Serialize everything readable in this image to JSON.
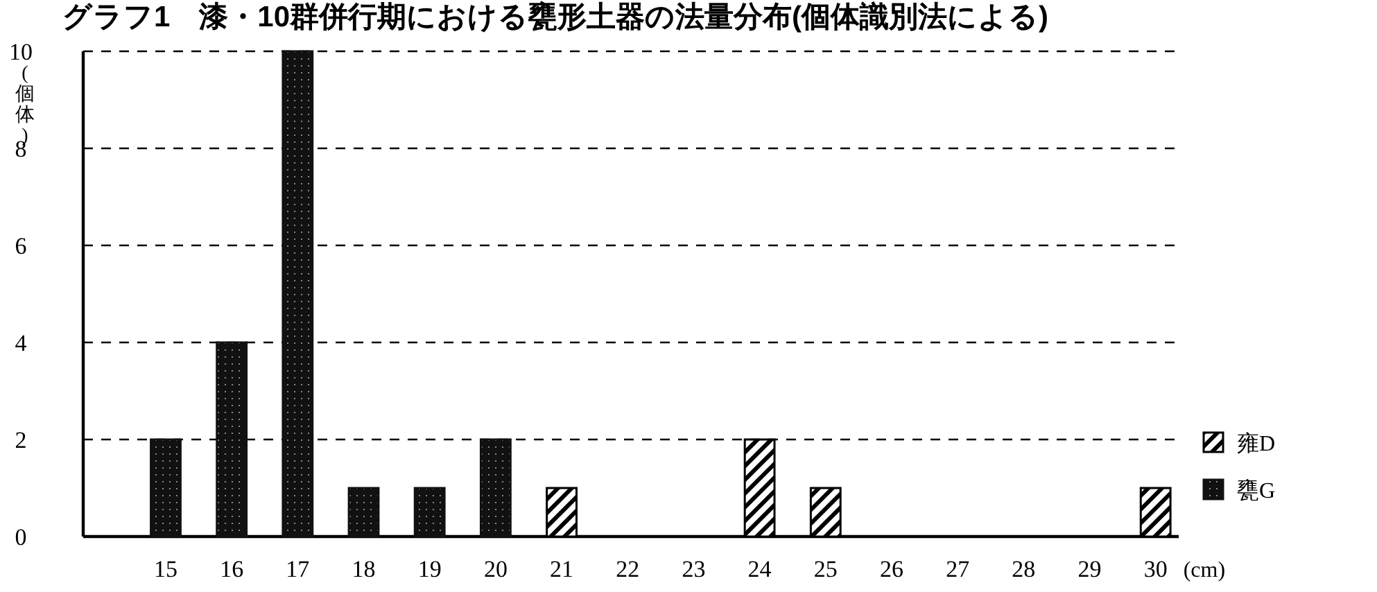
{
  "chart_data": {
    "type": "bar",
    "title": "グラフ1　漆・10群併行期における甕形土器の法量分布(個体識別法による)",
    "ylabel": "(個体)",
    "xlabel": "(cm)",
    "categories": [
      "15",
      "16",
      "17",
      "18",
      "19",
      "20",
      "21",
      "22",
      "23",
      "24",
      "25",
      "26",
      "27",
      "28",
      "29",
      "30"
    ],
    "series": [
      {
        "name": "雍D",
        "color": "#000000",
        "values": [
          null,
          null,
          null,
          null,
          null,
          null,
          1,
          null,
          null,
          2,
          1,
          null,
          null,
          null,
          null,
          1
        ]
      },
      {
        "name": "甕G",
        "color": "#111111",
        "values": [
          2,
          4,
          10,
          1,
          1,
          2,
          null,
          null,
          null,
          null,
          null,
          null,
          null,
          null,
          null,
          null
        ]
      }
    ],
    "ylim": [
      0,
      10
    ],
    "yticks": [
      0,
      2,
      4,
      6,
      8,
      10
    ],
    "grid": "y",
    "legend": "right"
  }
}
